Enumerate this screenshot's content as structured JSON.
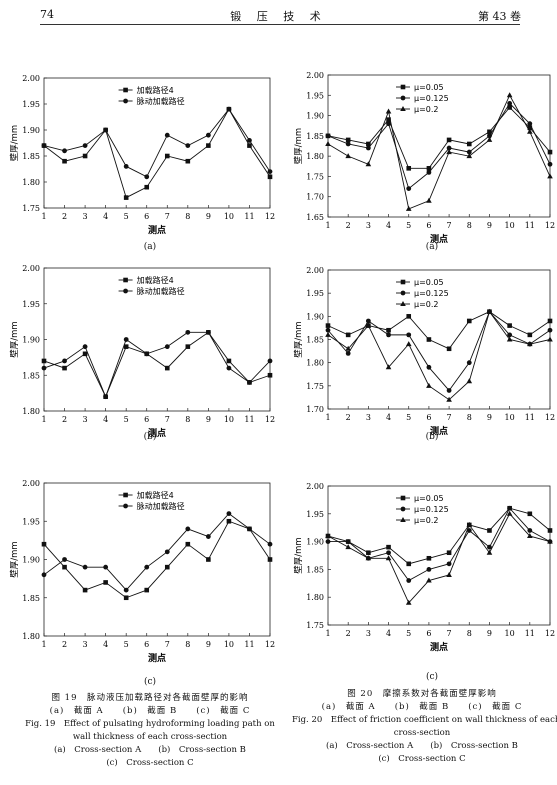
{
  "header": {
    "page_number": "74",
    "journal": "锻 压 技 术",
    "volume": "第 43 卷"
  },
  "figures": [
    {
      "sublabel": "(a)",
      "chart_data": {
        "type": "line",
        "title": "",
        "xlabel": "测点",
        "ylabel": "壁厚/mm",
        "x": [
          1,
          2,
          3,
          4,
          5,
          6,
          7,
          8,
          9,
          10,
          11,
          12
        ],
        "ylim": [
          1.75,
          2.0
        ],
        "yticks": [
          "1.75",
          "1.80",
          "1.85",
          "1.90",
          "1.95",
          "2.00"
        ],
        "legend_position": "top-center",
        "series": [
          {
            "name": "加载路径4",
            "marker": "square",
            "values": [
              1.87,
              1.84,
              1.85,
              1.9,
              1.77,
              1.79,
              1.85,
              1.84,
              1.87,
              1.94,
              1.87,
              1.81
            ]
          },
          {
            "name": "脉动加载路径",
            "marker": "circle",
            "values": [
              1.87,
              1.86,
              1.87,
              1.9,
              1.83,
              1.81,
              1.89,
              1.87,
              1.89,
              1.94,
              1.88,
              1.82
            ]
          }
        ]
      }
    },
    {
      "sublabel": "(a)",
      "chart_data": {
        "type": "line",
        "title": "",
        "xlabel": "测点",
        "ylabel": "壁厚/mm",
        "x": [
          1,
          2,
          3,
          4,
          5,
          6,
          7,
          8,
          9,
          10,
          11,
          12
        ],
        "ylim": [
          1.65,
          2.0
        ],
        "yticks": [
          "1.65",
          "1.70",
          "1.75",
          "1.80",
          "1.85",
          "1.90",
          "1.95",
          "2.00"
        ],
        "legend_position": "top-left",
        "series": [
          {
            "name": "μ=0.05",
            "marker": "square",
            "values": [
              1.85,
              1.84,
              1.83,
              1.89,
              1.77,
              1.77,
              1.84,
              1.83,
              1.86,
              1.92,
              1.87,
              1.81
            ]
          },
          {
            "name": "μ=0.125",
            "marker": "circle",
            "values": [
              1.85,
              1.83,
              1.82,
              1.88,
              1.72,
              1.76,
              1.82,
              1.81,
              1.85,
              1.93,
              1.88,
              1.78
            ]
          },
          {
            "name": "μ=0.2",
            "marker": "triangle",
            "values": [
              1.83,
              1.8,
              1.78,
              1.91,
              1.67,
              1.69,
              1.81,
              1.8,
              1.84,
              1.95,
              1.86,
              1.75
            ]
          }
        ]
      }
    },
    {
      "sublabel": "(b)",
      "chart_data": {
        "type": "line",
        "title": "",
        "xlabel": "测点",
        "ylabel": "壁厚/mm",
        "x": [
          1,
          2,
          3,
          4,
          5,
          6,
          7,
          8,
          9,
          10,
          11,
          12
        ],
        "ylim": [
          1.8,
          2.0
        ],
        "yticks": [
          "1.80",
          "1.85",
          "1.90",
          "1.95",
          "2.00"
        ],
        "legend_position": "top-center",
        "series": [
          {
            "name": "加载路径4",
            "marker": "square",
            "values": [
              1.87,
              1.86,
              1.88,
              1.82,
              1.89,
              1.88,
              1.86,
              1.89,
              1.91,
              1.87,
              1.84,
              1.85
            ]
          },
          {
            "name": "脉动加载路径",
            "marker": "circle",
            "values": [
              1.86,
              1.87,
              1.89,
              1.82,
              1.9,
              1.88,
              1.89,
              1.91,
              1.91,
              1.86,
              1.84,
              1.87
            ]
          }
        ]
      }
    },
    {
      "sublabel": "(b)",
      "chart_data": {
        "type": "line",
        "title": "",
        "xlabel": "测点",
        "ylabel": "壁厚/mm",
        "x": [
          1,
          2,
          3,
          4,
          5,
          6,
          7,
          8,
          9,
          10,
          11,
          12
        ],
        "ylim": [
          1.7,
          2.0
        ],
        "yticks": [
          "1.70",
          "1.75",
          "1.80",
          "1.85",
          "1.90",
          "1.95",
          "2.00"
        ],
        "legend_position": "top-left",
        "series": [
          {
            "name": "μ=0.05",
            "marker": "square",
            "values": [
              1.88,
              1.86,
              1.88,
              1.87,
              1.9,
              1.85,
              1.83,
              1.89,
              1.91,
              1.88,
              1.86,
              1.89
            ]
          },
          {
            "name": "μ=0.125",
            "marker": "circle",
            "values": [
              1.87,
              1.82,
              1.89,
              1.86,
              1.86,
              1.79,
              1.74,
              1.8,
              1.91,
              1.86,
              1.84,
              1.87
            ]
          },
          {
            "name": "μ=0.2",
            "marker": "triangle",
            "values": [
              1.86,
              1.83,
              1.88,
              1.79,
              1.84,
              1.75,
              1.72,
              1.76,
              1.91,
              1.85,
              1.84,
              1.85
            ]
          }
        ]
      }
    },
    {
      "sublabel": "(c)",
      "chart_data": {
        "type": "line",
        "title": "",
        "xlabel": "测点",
        "ylabel": "壁厚/mm",
        "x": [
          1,
          2,
          3,
          4,
          5,
          6,
          7,
          8,
          9,
          10,
          11,
          12
        ],
        "ylim": [
          1.8,
          2.0
        ],
        "yticks": [
          "1.80",
          "1.85",
          "1.90",
          "1.95",
          "2.00"
        ],
        "legend_position": "top-center",
        "series": [
          {
            "name": "加载路径4",
            "marker": "square",
            "values": [
              1.92,
              1.89,
              1.86,
              1.87,
              1.85,
              1.86,
              1.89,
              1.92,
              1.9,
              1.95,
              1.94,
              1.9
            ]
          },
          {
            "name": "脉动加载路径",
            "marker": "circle",
            "values": [
              1.88,
              1.9,
              1.89,
              1.89,
              1.86,
              1.89,
              1.91,
              1.94,
              1.93,
              1.96,
              1.94,
              1.92
            ]
          }
        ]
      }
    },
    {
      "sublabel": "(c)",
      "chart_data": {
        "type": "line",
        "title": "",
        "xlabel": "测点",
        "ylabel": "壁厚/mm",
        "x": [
          1,
          2,
          3,
          4,
          5,
          6,
          7,
          8,
          9,
          10,
          11,
          12
        ],
        "ylim": [
          1.75,
          2.0
        ],
        "yticks": [
          "1.75",
          "1.80",
          "1.85",
          "1.90",
          "1.95",
          "2.00"
        ],
        "legend_position": "top-left",
        "series": [
          {
            "name": "μ=0.05",
            "marker": "square",
            "values": [
              1.91,
              1.9,
              1.88,
              1.89,
              1.86,
              1.87,
              1.88,
              1.93,
              1.92,
              1.96,
              1.95,
              1.92
            ]
          },
          {
            "name": "μ=0.125",
            "marker": "circle",
            "values": [
              1.9,
              1.9,
              1.87,
              1.88,
              1.83,
              1.85,
              1.86,
              1.92,
              1.89,
              1.96,
              1.92,
              1.9
            ]
          },
          {
            "name": "μ=0.2",
            "marker": "triangle",
            "values": [
              1.91,
              1.89,
              1.87,
              1.87,
              1.79,
              1.83,
              1.84,
              1.93,
              1.88,
              1.95,
              1.91,
              1.9
            ]
          }
        ]
      }
    }
  ],
  "captions": {
    "fig19": [
      "图 19　脉动液压加载路径对各截面壁厚的影响",
      "(a)　截面 A　　(b)　截面 B　　(c)　截面 C",
      "Fig. 19　Effect of pulsating hydroforming loading path on",
      "wall thickness of each cross-section",
      "(a)　Cross-section A　　(b)　Cross-section B",
      "(c)　Cross-section C"
    ],
    "fig20": [
      "图 20　摩擦系数对各截面壁厚影响",
      "(a)　截面 A　　(b)　截面 B　　(c)　截面 C",
      "Fig. 20　Effect of friction coefficient on wall thickness of each",
      "cross-section",
      "(a)　Cross-section A　　(b)　Cross-section B",
      "(c)　Cross-section C"
    ]
  }
}
